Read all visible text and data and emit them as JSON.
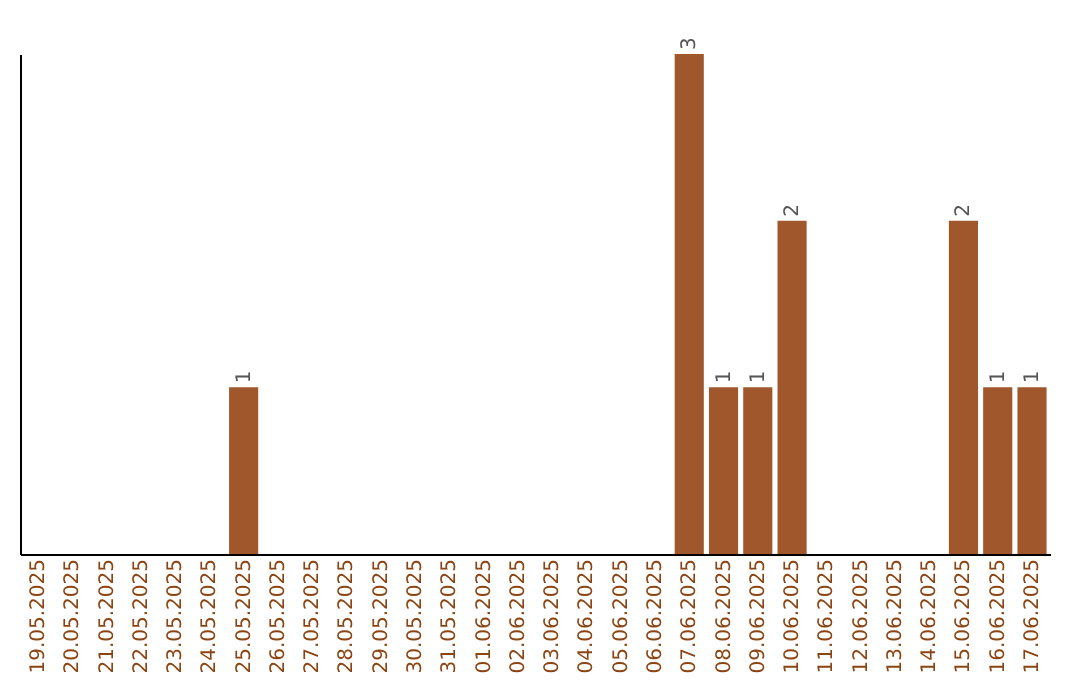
{
  "chart_data": {
    "type": "bar",
    "categories": [
      "19.05.2025",
      "20.05.2025",
      "21.05.2025",
      "22.05.2025",
      "23.05.2025",
      "24.05.2025",
      "25.05.2025",
      "26.05.2025",
      "27.05.2025",
      "28.05.2025",
      "29.05.2025",
      "30.05.2025",
      "31.05.2025",
      "01.06.2025",
      "02.06.2025",
      "03.06.2025",
      "04.06.2025",
      "05.06.2025",
      "06.06.2025",
      "07.06.2025",
      "08.06.2025",
      "09.06.2025",
      "10.06.2025",
      "11.06.2025",
      "12.06.2025",
      "13.06.2025",
      "14.06.2025",
      "15.06.2025",
      "16.06.2025",
      "17.06.2025"
    ],
    "values": [
      0,
      0,
      0,
      0,
      0,
      0,
      1,
      0,
      0,
      0,
      0,
      0,
      0,
      0,
      0,
      0,
      0,
      0,
      0,
      3,
      1,
      1,
      2,
      0,
      0,
      0,
      0,
      2,
      1,
      1
    ],
    "value_labels": [
      null,
      null,
      null,
      null,
      null,
      null,
      "1",
      null,
      null,
      null,
      null,
      null,
      null,
      null,
      null,
      null,
      null,
      null,
      null,
      "3",
      "1",
      "1",
      "2",
      null,
      null,
      null,
      null,
      "2",
      "1",
      "1"
    ],
    "color": "#a0572b",
    "tick_labels": "x",
    "grid": false
  }
}
